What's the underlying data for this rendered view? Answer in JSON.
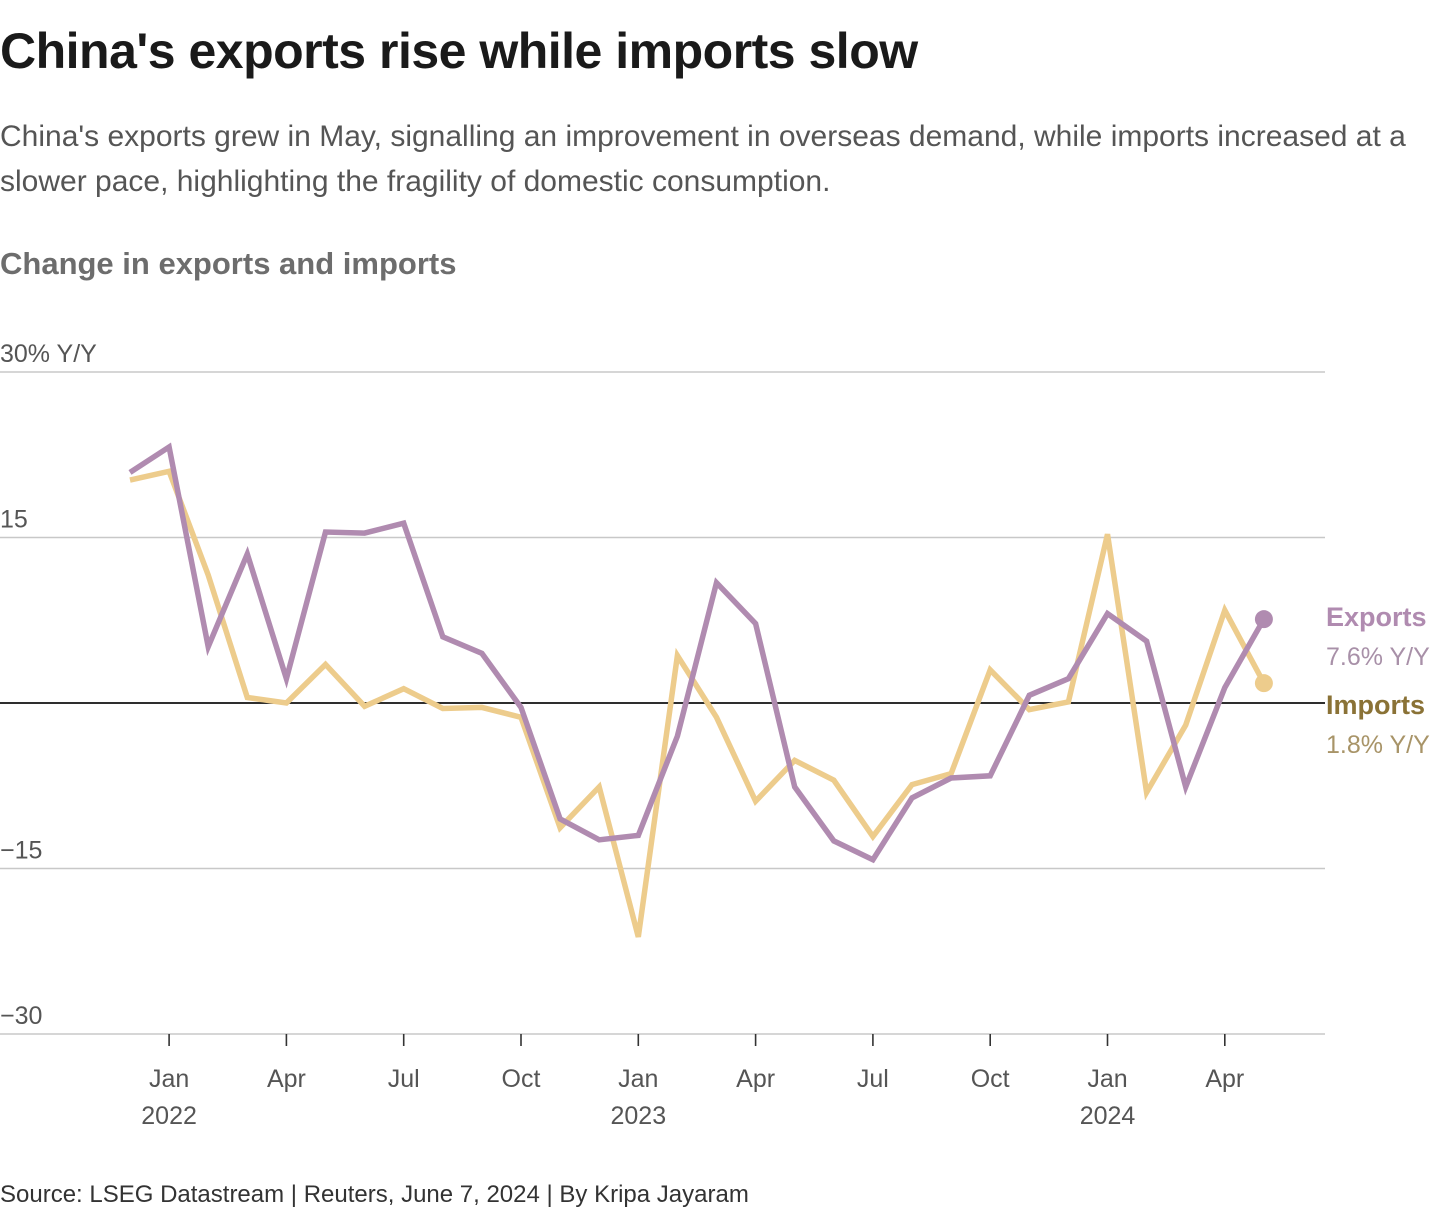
{
  "header": {
    "title": "China's exports rise while imports slow",
    "subtitle": "China's exports grew in May, signalling an improvement in overseas demand, while imports increased at a slower pace, highlighting the fragility of domestic consumption."
  },
  "footer": {
    "source": "Source: LSEG Datastream | Reuters, June 7, 2024 | By Kripa Jayaram"
  },
  "colors": {
    "exports": "#b08bb0",
    "imports": "#edcc8c",
    "exports_value_text": "#a890a8",
    "imports_label_text": "#8a7236",
    "imports_value_text": "#a89468"
  },
  "chart_data": {
    "type": "line",
    "title": "Change in exports and imports",
    "ylabel": "",
    "xlabel": "",
    "ylim": [
      -30,
      30
    ],
    "y_ticks": [
      {
        "value": 30,
        "label": "30% Y/Y"
      },
      {
        "value": 15,
        "label": "15"
      },
      {
        "value": -15,
        "label": "−15"
      },
      {
        "value": -30,
        "label": "−30"
      }
    ],
    "x_ticks": [
      {
        "month": "2022-01",
        "label": "Jan",
        "year": "2022"
      },
      {
        "month": "2022-04",
        "label": "Apr",
        "year": ""
      },
      {
        "month": "2022-07",
        "label": "Jul",
        "year": ""
      },
      {
        "month": "2022-10",
        "label": "Oct",
        "year": ""
      },
      {
        "month": "2023-01",
        "label": "Jan",
        "year": "2023"
      },
      {
        "month": "2023-04",
        "label": "Apr",
        "year": ""
      },
      {
        "month": "2023-07",
        "label": "Jul",
        "year": ""
      },
      {
        "month": "2023-10",
        "label": "Oct",
        "year": ""
      },
      {
        "month": "2024-01",
        "label": "Jan",
        "year": "2024"
      },
      {
        "month": "2024-04",
        "label": "Apr",
        "year": ""
      }
    ],
    "x": [
      "2021-12",
      "2022-01",
      "2022-02",
      "2022-03",
      "2022-04",
      "2022-05",
      "2022-06",
      "2022-07",
      "2022-08",
      "2022-09",
      "2022-10",
      "2022-11",
      "2022-12",
      "2023-01",
      "2023-02",
      "2023-03",
      "2023-04",
      "2023-05",
      "2023-06",
      "2023-07",
      "2023-08",
      "2023-09",
      "2023-10",
      "2023-11",
      "2023-12",
      "2024-01",
      "2024-02",
      "2024-03",
      "2024-04",
      "2024-05"
    ],
    "series": [
      {
        "name": "Exports",
        "value_label": "7.6% Y/Y",
        "values": [
          20.9,
          23.2,
          5.1,
          13.5,
          2.2,
          15.5,
          15.4,
          16.3,
          6.0,
          4.5,
          -0.4,
          -10.5,
          -12.4,
          -12.0,
          -3.0,
          10.9,
          7.2,
          -7.6,
          -12.5,
          -14.2,
          -8.6,
          -6.8,
          -6.6,
          0.7,
          2.2,
          8.1,
          5.6,
          -7.6,
          1.4,
          7.6
        ]
      },
      {
        "name": "Imports",
        "value_label": "1.8% Y/Y",
        "values": [
          20.2,
          21.0,
          11.6,
          0.5,
          0.0,
          3.5,
          -0.3,
          1.3,
          -0.5,
          -0.4,
          -1.3,
          -11.3,
          -7.6,
          -21.2,
          4.3,
          -1.3,
          -8.9,
          -5.2,
          -7.0,
          -12.1,
          -7.4,
          -6.4,
          3.0,
          -0.6,
          0.1,
          15.3,
          -8.1,
          -2.0,
          8.4,
          1.8
        ]
      }
    ]
  }
}
